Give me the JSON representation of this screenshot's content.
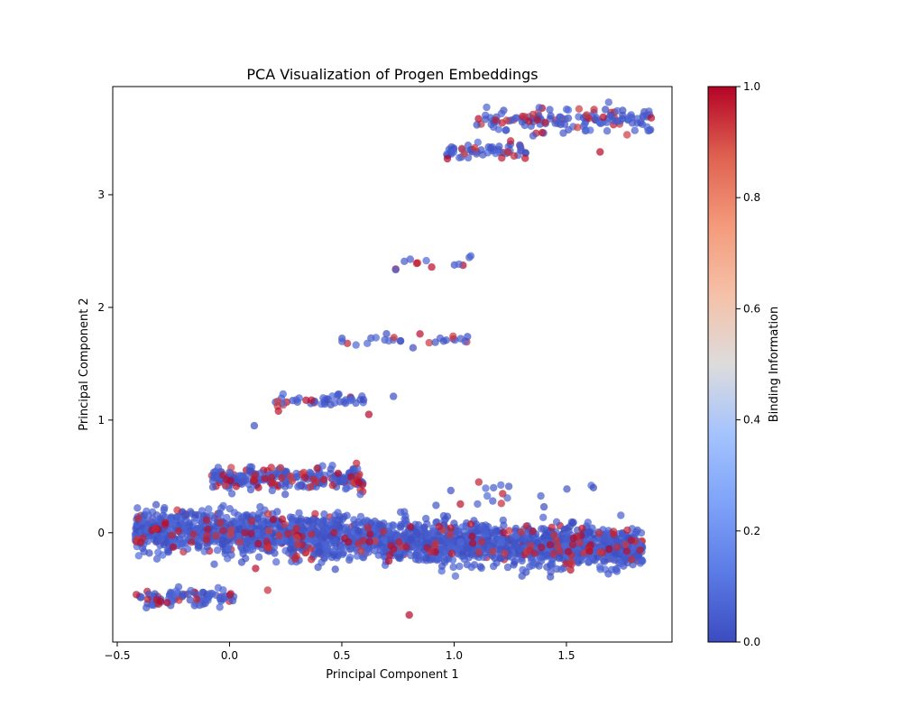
{
  "chart_data": {
    "type": "scatter",
    "title": "PCA Visualization of Progen Embeddings",
    "xlabel": "Principal Component 1",
    "ylabel": "Principal Component 2",
    "xlim": [
      -0.52,
      1.97
    ],
    "ylim": [
      -0.97,
      3.96
    ],
    "xticks": [
      -0.5,
      0.0,
      0.5,
      1.0,
      1.5
    ],
    "xtick_labels": [
      "−0.5",
      "0.0",
      "0.5",
      "1.0",
      "1.5"
    ],
    "yticks": [
      0,
      1,
      2,
      3
    ],
    "ytick_labels": [
      "0",
      "1",
      "2",
      "3"
    ],
    "grid": false,
    "colormap": "coolwarm",
    "colorbar": {
      "label": "Binding Information",
      "range": [
        0.0,
        1.0
      ],
      "ticks": [
        0.0,
        0.2,
        0.4,
        0.6,
        0.8,
        1.0
      ],
      "tick_labels": [
        "0.0",
        "0.2",
        "0.4",
        "0.6",
        "0.8",
        "1.0"
      ]
    },
    "marker_alpha": 0.7,
    "clusters": [
      {
        "name": "main",
        "x_range": [
          -0.42,
          1.84
        ],
        "y_center": 0.03,
        "slope": -0.08,
        "y_spread": 0.09,
        "n": 2200,
        "red_fraction": 0.12
      },
      {
        "name": "lower-left",
        "x_range": [
          -0.42,
          0.03
        ],
        "y_center": -0.58,
        "slope": 0.0,
        "y_spread": 0.04,
        "n": 90,
        "red_fraction": 0.15
      },
      {
        "name": "band-0.5",
        "x_range": [
          -0.08,
          0.6
        ],
        "y_center": 0.48,
        "slope": 0.0,
        "y_spread": 0.05,
        "n": 260,
        "red_fraction": 0.25
      },
      {
        "name": "band-1.2",
        "x_range": [
          0.2,
          0.6
        ],
        "y_center": 1.17,
        "slope": 0.0,
        "y_spread": 0.03,
        "n": 45,
        "red_fraction": 0.2
      },
      {
        "name": "band-1.7",
        "x_range": [
          0.48,
          1.12
        ],
        "y_center": 1.69,
        "slope": 0.0,
        "y_spread": 0.03,
        "n": 28,
        "red_fraction": 0.18
      },
      {
        "name": "band-2.4",
        "x_range": [
          0.74,
          1.1
        ],
        "y_center": 2.41,
        "slope": 0.0,
        "y_spread": 0.03,
        "n": 12,
        "red_fraction": 0.2
      },
      {
        "name": "band-3.4",
        "x_range": [
          0.96,
          1.32
        ],
        "y_center": 3.38,
        "slope": 0.05,
        "y_spread": 0.03,
        "n": 60,
        "red_fraction": 0.2
      },
      {
        "name": "band-3.6",
        "x_range": [
          1.08,
          1.88
        ],
        "y_center": 3.64,
        "slope": 0.04,
        "y_spread": 0.06,
        "n": 140,
        "red_fraction": 0.2
      },
      {
        "name": "ridge-0.35",
        "x_range": [
          0.92,
          1.65
        ],
        "y_center": 0.35,
        "slope": 0.0,
        "y_spread": 0.06,
        "n": 14,
        "red_fraction": 0.1
      }
    ],
    "outliers": [
      {
        "x": 0.8,
        "y": -0.73,
        "value": 1.0
      },
      {
        "x": 1.21,
        "y": 0.26,
        "value": 0.95
      },
      {
        "x": 1.65,
        "y": 3.38,
        "value": 1.0
      },
      {
        "x": 0.74,
        "y": 2.34,
        "value": 1.0
      },
      {
        "x": 0.97,
        "y": 3.32,
        "value": 1.0
      },
      {
        "x": 0.17,
        "y": -0.51,
        "value": 0.95
      },
      {
        "x": 0.62,
        "y": 1.05,
        "value": 1.0
      },
      {
        "x": 1.4,
        "y": 0.23,
        "value": 0.0
      },
      {
        "x": 1.62,
        "y": 0.4,
        "value": 0.0
      },
      {
        "x": 0.11,
        "y": 0.95,
        "value": 0.0
      },
      {
        "x": 0.73,
        "y": 1.21,
        "value": 0.0
      }
    ]
  }
}
